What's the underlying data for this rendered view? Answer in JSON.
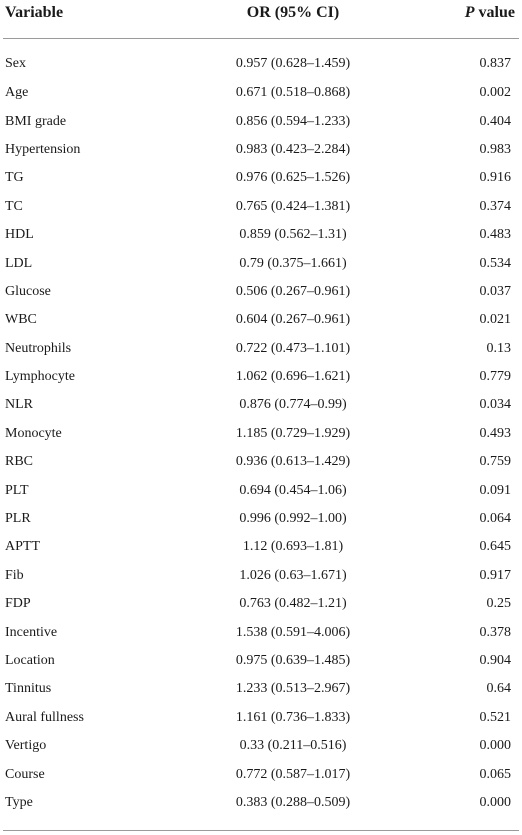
{
  "table": {
    "headers": {
      "variable": "Variable",
      "or": "OR (95% CI)",
      "p_italic": "P",
      "p_rest": " value"
    },
    "rows": [
      {
        "variable": "Sex",
        "or": "0.957 (0.628–1.459)",
        "p": "0.837"
      },
      {
        "variable": "Age",
        "or": "0.671 (0.518–0.868)",
        "p": "0.002"
      },
      {
        "variable": "BMI grade",
        "or": "0.856 (0.594–1.233)",
        "p": "0.404"
      },
      {
        "variable": "Hypertension",
        "or": "0.983 (0.423–2.284)",
        "p": "0.983"
      },
      {
        "variable": "TG",
        "or": "0.976 (0.625–1.526)",
        "p": "0.916"
      },
      {
        "variable": "TC",
        "or": "0.765 (0.424–1.381)",
        "p": "0.374"
      },
      {
        "variable": "HDL",
        "or": "0.859 (0.562–1.31)",
        "p": "0.483"
      },
      {
        "variable": "LDL",
        "or": "0.79 (0.375–1.661)",
        "p": "0.534"
      },
      {
        "variable": "Glucose",
        "or": "0.506 (0.267–0.961)",
        "p": "0.037"
      },
      {
        "variable": "WBC",
        "or": "0.604 (0.267–0.961)",
        "p": "0.021"
      },
      {
        "variable": "Neutrophils",
        "or": "0.722 (0.473–1.101)",
        "p": "0.13"
      },
      {
        "variable": "Lymphocyte",
        "or": "1.062 (0.696–1.621)",
        "p": "0.779"
      },
      {
        "variable": "NLR",
        "or": "0.876 (0.774–0.99)",
        "p": "0.034"
      },
      {
        "variable": "Monocyte",
        "or": "1.185 (0.729–1.929)",
        "p": "0.493"
      },
      {
        "variable": "RBC",
        "or": "0.936 (0.613–1.429)",
        "p": "0.759"
      },
      {
        "variable": "PLT",
        "or": "0.694 (0.454–1.06)",
        "p": "0.091"
      },
      {
        "variable": "PLR",
        "or": "0.996 (0.992–1.00)",
        "p": "0.064"
      },
      {
        "variable": "APTT",
        "or": "1.12 (0.693–1.81)",
        "p": "0.645"
      },
      {
        "variable": "Fib",
        "or": "1.026 (0.63–1.671)",
        "p": "0.917"
      },
      {
        "variable": "FDP",
        "or": "0.763 (0.482–1.21)",
        "p": "0.25"
      },
      {
        "variable": "Incentive",
        "or": "1.538 (0.591–4.006)",
        "p": "0.378"
      },
      {
        "variable": "Location",
        "or": "0.975 (0.639–1.485)",
        "p": "0.904"
      },
      {
        "variable": "Tinnitus",
        "or": "1.233 (0.513–2.967)",
        "p": "0.64"
      },
      {
        "variable": "Aural fullness",
        "or": "1.161 (0.736–1.833)",
        "p": "0.521"
      },
      {
        "variable": "Vertigo",
        "or": "0.33 (0.211–0.516)",
        "p": "0.000"
      },
      {
        "variable": "Course",
        "or": "0.772 (0.587–1.017)",
        "p": "0.065"
      },
      {
        "variable": "Type",
        "or": "0.383 (0.288–0.509)",
        "p": "0.000"
      }
    ]
  }
}
